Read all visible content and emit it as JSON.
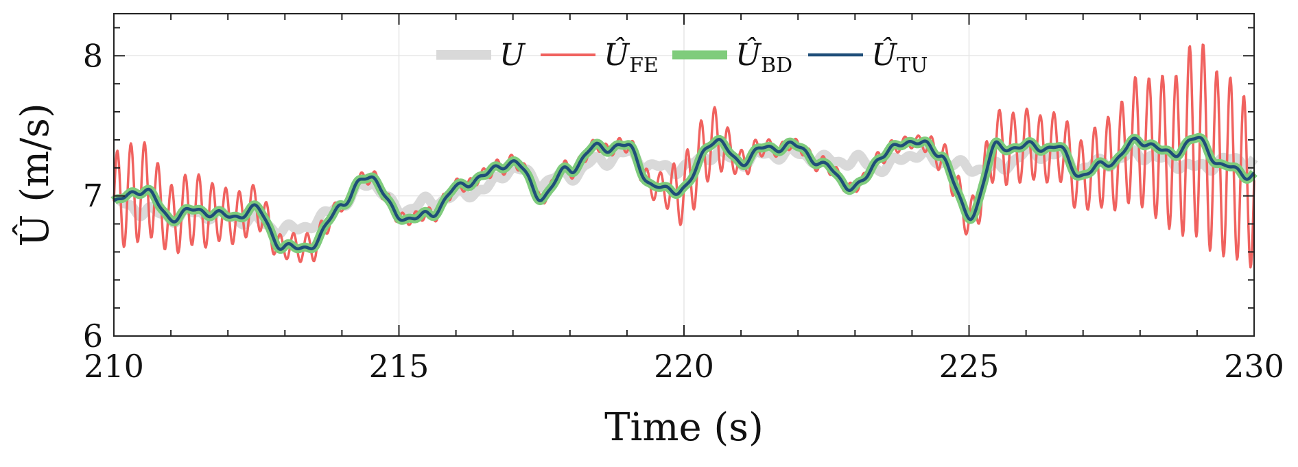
{
  "chart_data": {
    "type": "line",
    "xlabel": "Time (s)",
    "ylabel": "Û (m/s)",
    "xlim": [
      210,
      230
    ],
    "ylim": [
      6,
      8.3
    ],
    "x_ticks": [
      210,
      215,
      220,
      225,
      230
    ],
    "y_ticks": [
      6,
      7,
      8
    ],
    "grid": true,
    "legend_position": "top-center",
    "legend": [
      {
        "key": "U",
        "label": "U",
        "sub": "",
        "hat": false
      },
      {
        "key": "FE",
        "label": "Û",
        "sub": "FE",
        "hat": true
      },
      {
        "key": "BD",
        "label": "Û",
        "sub": "BD",
        "hat": true
      },
      {
        "key": "TU",
        "label": "Û",
        "sub": "TU",
        "hat": true
      }
    ],
    "x": [
      210,
      210.5,
      211,
      211.5,
      212,
      212.5,
      213,
      213.5,
      214,
      214.5,
      215,
      215.5,
      216,
      216.5,
      217,
      217.5,
      218,
      218.5,
      219,
      219.5,
      220,
      220.5,
      221,
      221.5,
      222,
      222.5,
      223,
      223.5,
      224,
      224.5,
      225,
      225.5,
      226,
      226.5,
      227,
      227.5,
      228,
      228.5,
      229,
      229.5,
      230
    ],
    "series": [
      {
        "name": "U",
        "color": "#d9d9d9",
        "values": [
          6.95,
          6.9,
          6.85,
          6.88,
          6.85,
          6.82,
          6.75,
          6.8,
          6.95,
          7.1,
          6.9,
          6.95,
          7.0,
          7.05,
          7.2,
          7.1,
          7.15,
          7.25,
          7.3,
          7.2,
          7.2,
          7.3,
          7.25,
          7.3,
          7.3,
          7.25,
          7.25,
          7.2,
          7.3,
          7.25,
          7.2,
          7.2,
          7.3,
          7.3,
          7.2,
          7.25,
          7.3,
          7.25,
          7.2,
          7.25,
          7.25
        ]
      },
      {
        "name": "Û_FE",
        "color": "#f0625f",
        "values": [
          6.95,
          7.05,
          6.85,
          6.9,
          6.85,
          6.9,
          6.62,
          6.65,
          6.95,
          7.15,
          6.85,
          6.85,
          7.05,
          7.15,
          7.25,
          7.0,
          7.2,
          7.35,
          7.35,
          7.05,
          7.05,
          7.4,
          7.25,
          7.35,
          7.35,
          7.2,
          7.05,
          7.3,
          7.4,
          7.3,
          6.85,
          7.35,
          7.35,
          7.35,
          7.15,
          7.25,
          7.4,
          7.3,
          7.4,
          7.2,
          7.1
        ],
        "osc_amp": [
          0.35,
          0.35,
          0.25,
          0.25,
          0.2,
          0.15,
          0.1,
          0.1,
          0.05,
          0.05,
          0.05,
          0.05,
          0.05,
          0.05,
          0.05,
          0.05,
          0.05,
          0.05,
          0.05,
          0.1,
          0.25,
          0.25,
          0.1,
          0.05,
          0.05,
          0.05,
          0.05,
          0.05,
          0.05,
          0.1,
          0.15,
          0.25,
          0.25,
          0.25,
          0.25,
          0.35,
          0.45,
          0.55,
          0.7,
          0.65,
          0.6
        ]
      },
      {
        "name": "Û_BD",
        "color": "#7fcc7c",
        "values": [
          6.95,
          7.05,
          6.85,
          6.9,
          6.85,
          6.9,
          6.62,
          6.65,
          6.95,
          7.15,
          6.85,
          6.85,
          7.05,
          7.15,
          7.25,
          7.0,
          7.2,
          7.35,
          7.35,
          7.05,
          7.05,
          7.4,
          7.25,
          7.35,
          7.35,
          7.2,
          7.05,
          7.3,
          7.4,
          7.3,
          6.85,
          7.35,
          7.35,
          7.35,
          7.15,
          7.25,
          7.4,
          7.3,
          7.4,
          7.2,
          7.15
        ]
      },
      {
        "name": "Û_TU",
        "color": "#1f4e79",
        "values": [
          6.95,
          7.05,
          6.85,
          6.9,
          6.85,
          6.9,
          6.62,
          6.65,
          6.95,
          7.15,
          6.85,
          6.85,
          7.05,
          7.15,
          7.25,
          7.0,
          7.2,
          7.35,
          7.35,
          7.05,
          7.05,
          7.4,
          7.25,
          7.35,
          7.35,
          7.2,
          7.05,
          7.3,
          7.4,
          7.3,
          6.85,
          7.35,
          7.35,
          7.35,
          7.15,
          7.25,
          7.4,
          7.3,
          7.4,
          7.2,
          7.15
        ]
      }
    ]
  }
}
